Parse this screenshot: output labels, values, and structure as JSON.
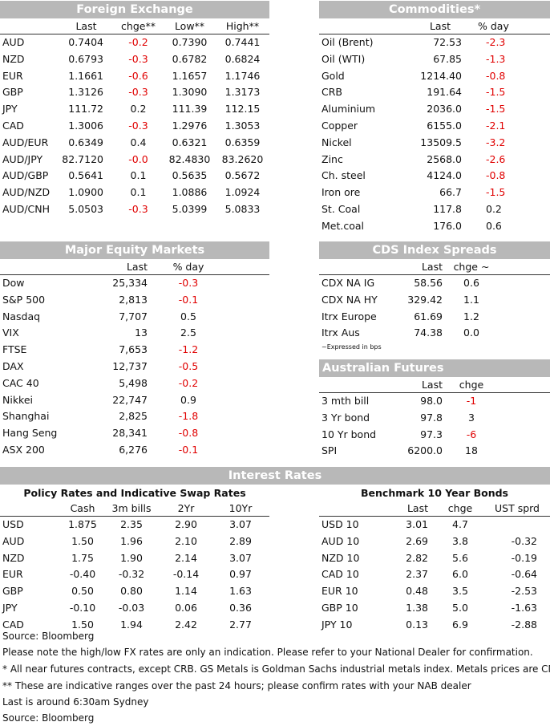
{
  "fx": {
    "title": "Foreign Exchange",
    "cols": [
      "Last",
      "chge**",
      "Low**",
      "High**"
    ],
    "rows": [
      {
        "name": "AUD",
        "last": "0.7404",
        "chge": "-0.2",
        "low": "0.7390",
        "high": "0.7441"
      },
      {
        "name": "NZD",
        "last": "0.6793",
        "chge": "-0.3",
        "low": "0.6782",
        "high": "0.6824"
      },
      {
        "name": "EUR",
        "last": "1.1661",
        "chge": "-0.6",
        "low": "1.1657",
        "high": "1.1746"
      },
      {
        "name": "GBP",
        "last": "1.3126",
        "chge": "-0.3",
        "low": "1.3090",
        "high": "1.3173"
      },
      {
        "name": "JPY",
        "last": "111.72",
        "chge": "0.2",
        "low": "111.39",
        "high": "112.15"
      },
      {
        "name": "CAD",
        "last": "1.3006",
        "chge": "-0.3",
        "low": "1.2976",
        "high": "1.3053"
      },
      {
        "name": "AUD/EUR",
        "last": "0.6349",
        "chge": "0.4",
        "low": "0.6321",
        "high": "0.6359"
      },
      {
        "name": "AUD/JPY",
        "last": "82.7120",
        "chge": "-0.0",
        "low": "82.4830",
        "high": "83.2620"
      },
      {
        "name": "AUD/GBP",
        "last": "0.5641",
        "chge": "0.1",
        "low": "0.5635",
        "high": "0.5672"
      },
      {
        "name": "AUD/NZD",
        "last": "1.0900",
        "chge": "0.1",
        "low": "1.0886",
        "high": "1.0924"
      },
      {
        "name": "AUD/CNH",
        "last": "5.0503",
        "chge": "-0.3",
        "low": "5.0399",
        "high": "5.0833"
      }
    ]
  },
  "commodities": {
    "title": "Commodities*",
    "cols": [
      "Last",
      "% day"
    ],
    "rows": [
      {
        "name": "Oil (Brent)",
        "last": "72.53",
        "chge": "-2.3"
      },
      {
        "name": "Oil (WTI)",
        "last": "67.85",
        "chge": "-1.3"
      },
      {
        "name": "Gold",
        "last": "1214.40",
        "chge": "-0.8"
      },
      {
        "name": "CRB",
        "last": "191.64",
        "chge": "-1.5"
      },
      {
        "name": "Aluminium",
        "last": "2036.0",
        "chge": "-1.5"
      },
      {
        "name": "Copper",
        "last": "6155.0",
        "chge": "-2.1"
      },
      {
        "name": "Nickel",
        "last": "13509.5",
        "chge": "-3.2"
      },
      {
        "name": "Zinc",
        "last": "2568.0",
        "chge": "-2.6"
      },
      {
        "name": "Ch. steel",
        "last": "4124.0",
        "chge": "-0.8"
      },
      {
        "name": "Iron ore",
        "last": "66.7",
        "chge": "-1.5"
      },
      {
        "name": "St. Coal",
        "last": "117.8",
        "chge": "0.2"
      },
      {
        "name": "Met.coal",
        "last": "176.0",
        "chge": "0.6"
      }
    ]
  },
  "equity": {
    "title": "Major Equity Markets",
    "cols": [
      "Last",
      "% day"
    ],
    "rows": [
      {
        "name": "Dow",
        "last": "25,334",
        "chge": "-0.3"
      },
      {
        "name": "S&P 500",
        "last": "2,813",
        "chge": "-0.1"
      },
      {
        "name": "Nasdaq",
        "last": "7,707",
        "chge": "0.5"
      },
      {
        "name": "VIX",
        "last": "13",
        "chge": "2.5"
      },
      {
        "name": "FTSE",
        "last": "7,653",
        "chge": "-1.2"
      },
      {
        "name": "DAX",
        "last": "12,737",
        "chge": "-0.5"
      },
      {
        "name": "CAC 40",
        "last": "5,498",
        "chge": "-0.2"
      },
      {
        "name": "Nikkei",
        "last": "22,747",
        "chge": "0.9"
      },
      {
        "name": "Shanghai",
        "last": "2,825",
        "chge": "-1.8"
      },
      {
        "name": "Hang Seng",
        "last": "28,341",
        "chge": "-0.8"
      },
      {
        "name": "ASX 200",
        "last": "6,276",
        "chge": "-0.1"
      }
    ]
  },
  "cds": {
    "title": "CDS Index Spreads",
    "cols": [
      "Last",
      "chge ~"
    ],
    "rows": [
      {
        "name": "CDX NA IG",
        "last": "58.56",
        "chge": "0.6"
      },
      {
        "name": "CDX NA HY",
        "last": "329.42",
        "chge": "1.1"
      },
      {
        "name": "Itrx Europe",
        "last": "61.69",
        "chge": "1.2"
      },
      {
        "name": "Itrx Aus",
        "last": "74.38",
        "chge": "0.0"
      }
    ],
    "footnote": "~Expressed in bps"
  },
  "futures": {
    "title": "Australian Futures",
    "cols": [
      "Last",
      "chge"
    ],
    "rows": [
      {
        "name": "3 mth bill",
        "last": "98.0",
        "chge": "-1"
      },
      {
        "name": "3 Yr bond",
        "last": "97.8",
        "chge": "3"
      },
      {
        "name": "10 Yr bond",
        "last": "97.3",
        "chge": "-6"
      },
      {
        "name": "SPI",
        "last": "6200.0",
        "chge": "18"
      }
    ]
  },
  "rates": {
    "title": "Interest Rates",
    "policy": {
      "title": "Policy Rates and Indicative Swap Rates",
      "cols": [
        "Cash",
        "3m bills",
        "2Yr",
        "10Yr"
      ],
      "rows": [
        {
          "name": "USD",
          "cash": "1.875",
          "bills": "2.35",
          "y2": "2.90",
          "y10": "3.07"
        },
        {
          "name": "AUD",
          "cash": "1.50",
          "bills": "1.96",
          "y2": "2.10",
          "y10": "2.89"
        },
        {
          "name": "NZD",
          "cash": "1.75",
          "bills": "1.90",
          "y2": "2.14",
          "y10": "3.07"
        },
        {
          "name": "EUR",
          "cash": "-0.40",
          "bills": "-0.32",
          "y2": "-0.14",
          "y10": "0.97"
        },
        {
          "name": "GBP",
          "cash": "0.50",
          "bills": "0.80",
          "y2": "1.14",
          "y10": "1.63"
        },
        {
          "name": "JPY",
          "cash": "-0.10",
          "bills": "-0.03",
          "y2": "0.06",
          "y10": "0.36"
        },
        {
          "name": "CAD",
          "cash": "1.50",
          "bills": "1.94",
          "y2": "2.42",
          "y10": "2.77"
        }
      ]
    },
    "bonds": {
      "title": "Benchmark 10 Year Bonds",
      "cols": [
        "Last",
        "chge",
        "UST sprd"
      ],
      "rows": [
        {
          "name": "USD 10",
          "last": "3.01",
          "chge": "4.7",
          "sprd": ""
        },
        {
          "name": "AUD 10",
          "last": "2.69",
          "chge": "3.8",
          "sprd": "-0.32"
        },
        {
          "name": "NZD 10",
          "last": "2.82",
          "chge": "5.6",
          "sprd": "-0.19"
        },
        {
          "name": "CAD 10",
          "last": "2.37",
          "chge": "6.0",
          "sprd": "-0.64"
        },
        {
          "name": "EUR 10",
          "last": "0.48",
          "chge": "3.5",
          "sprd": "-2.53"
        },
        {
          "name": "GBP 10",
          "last": "1.38",
          "chge": "5.0",
          "sprd": "-1.63"
        },
        {
          "name": "JPY 10",
          "last": "0.13",
          "chge": "6.9",
          "sprd": "-2.88"
        }
      ]
    }
  },
  "notes": [
    "Source: Bloomberg",
    "Please note the high/low FX rates are only an indication. Please refer to your National Dealer for confirmation.",
    "* All near futures contracts, except CRB.  GS Metals is Goldman Sachs industrial metals index.  Metals prices are CME.",
    "** These are indicative ranges over the past 24 hours; please confirm rates with your NAB dealer",
    "Last is around 6:30am Sydney",
    "Source: Bloomberg"
  ],
  "colors": {
    "header_bg": "#b8b8b8",
    "negative": "#e00000"
  }
}
